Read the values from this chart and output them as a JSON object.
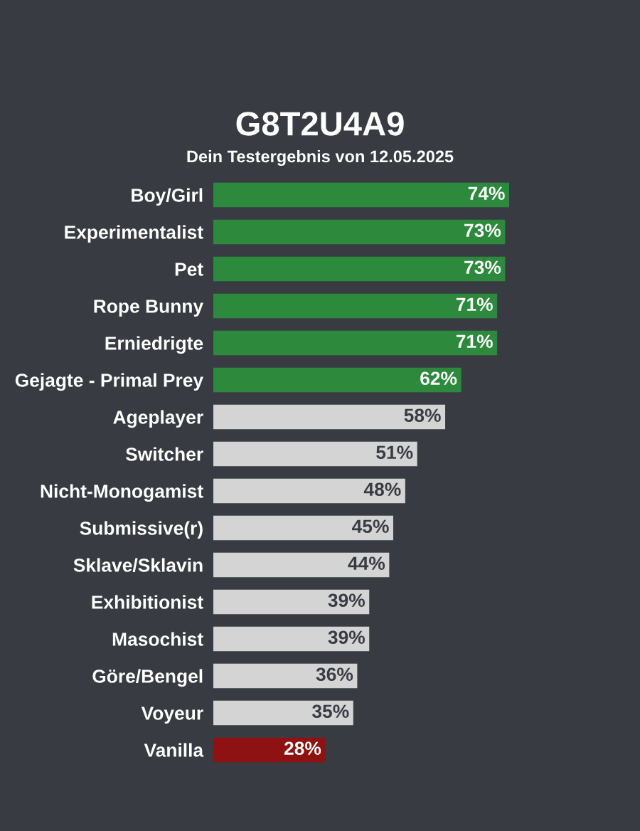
{
  "chart_data": {
    "type": "bar",
    "orientation": "horizontal",
    "title": "G8T2U4A9",
    "subtitle": "Dein Testergebnis von 12.05.2025",
    "categories": [
      "Boy/Girl",
      "Experimentalist",
      "Pet",
      "Rope Bunny",
      "Erniedrigte",
      "Gejagte - Primal Prey",
      "Ageplayer",
      "Switcher",
      "Nicht-Monogamist",
      "Submissive(r)",
      "Sklave/Sklavin",
      "Exhibitionist",
      "Masochist",
      "Göre/Bengel",
      "Voyeur",
      "Vanilla"
    ],
    "values": [
      74,
      73,
      73,
      71,
      71,
      62,
      58,
      51,
      48,
      45,
      44,
      39,
      39,
      36,
      35,
      28
    ],
    "value_labels": [
      "74%",
      "73%",
      "73%",
      "71%",
      "71%",
      "62%",
      "58%",
      "51%",
      "48%",
      "45%",
      "44%",
      "39%",
      "39%",
      "36%",
      "35%",
      "28%"
    ],
    "colors": [
      "#2d8a3c",
      "#2d8a3c",
      "#2d8a3c",
      "#2d8a3c",
      "#2d8a3c",
      "#2d8a3c",
      "#d4d4d4",
      "#d4d4d4",
      "#d4d4d4",
      "#d4d4d4",
      "#d4d4d4",
      "#d4d4d4",
      "#d4d4d4",
      "#d4d4d4",
      "#d4d4d4",
      "#8e1212"
    ],
    "tick_labels": "y",
    "grid": false
  }
}
